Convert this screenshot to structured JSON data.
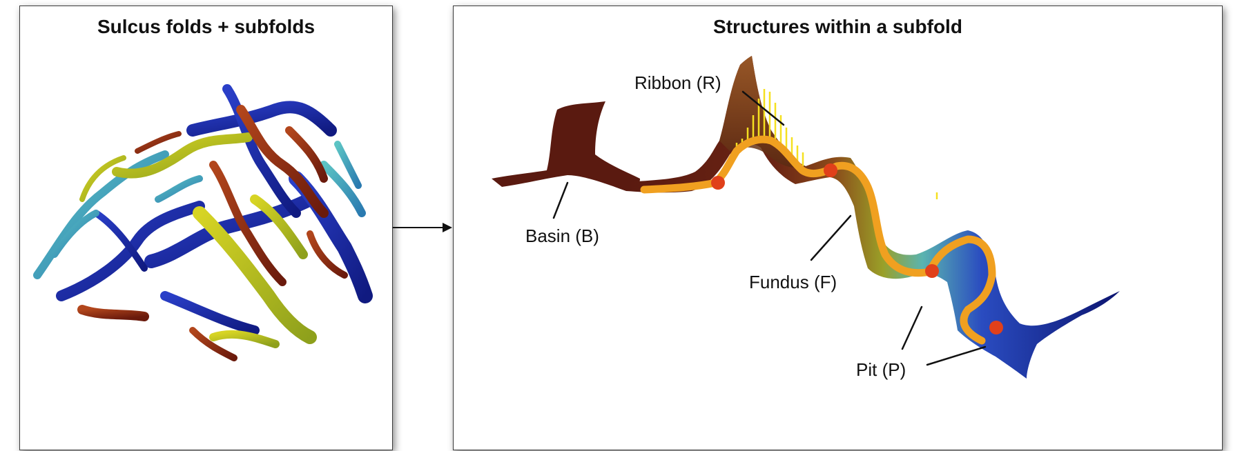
{
  "left_panel": {
    "title": "Sulcus folds + subfolds"
  },
  "right_panel": {
    "title": "Structures within a subfold",
    "labels": {
      "ribbon": "Ribbon (R)",
      "basin": "Basin (B)",
      "fundus": "Fundus (F)",
      "pit": "Pit (P)"
    }
  },
  "colors": {
    "fundus_curve": "#f0a020",
    "pit_marker": "#e0401a",
    "ribbon_lines": "#f5e020",
    "basin_fill": "#5a1a10",
    "deep_blue": "#1a2a9a"
  },
  "icons": {
    "arrow": "right-arrow-icon"
  }
}
